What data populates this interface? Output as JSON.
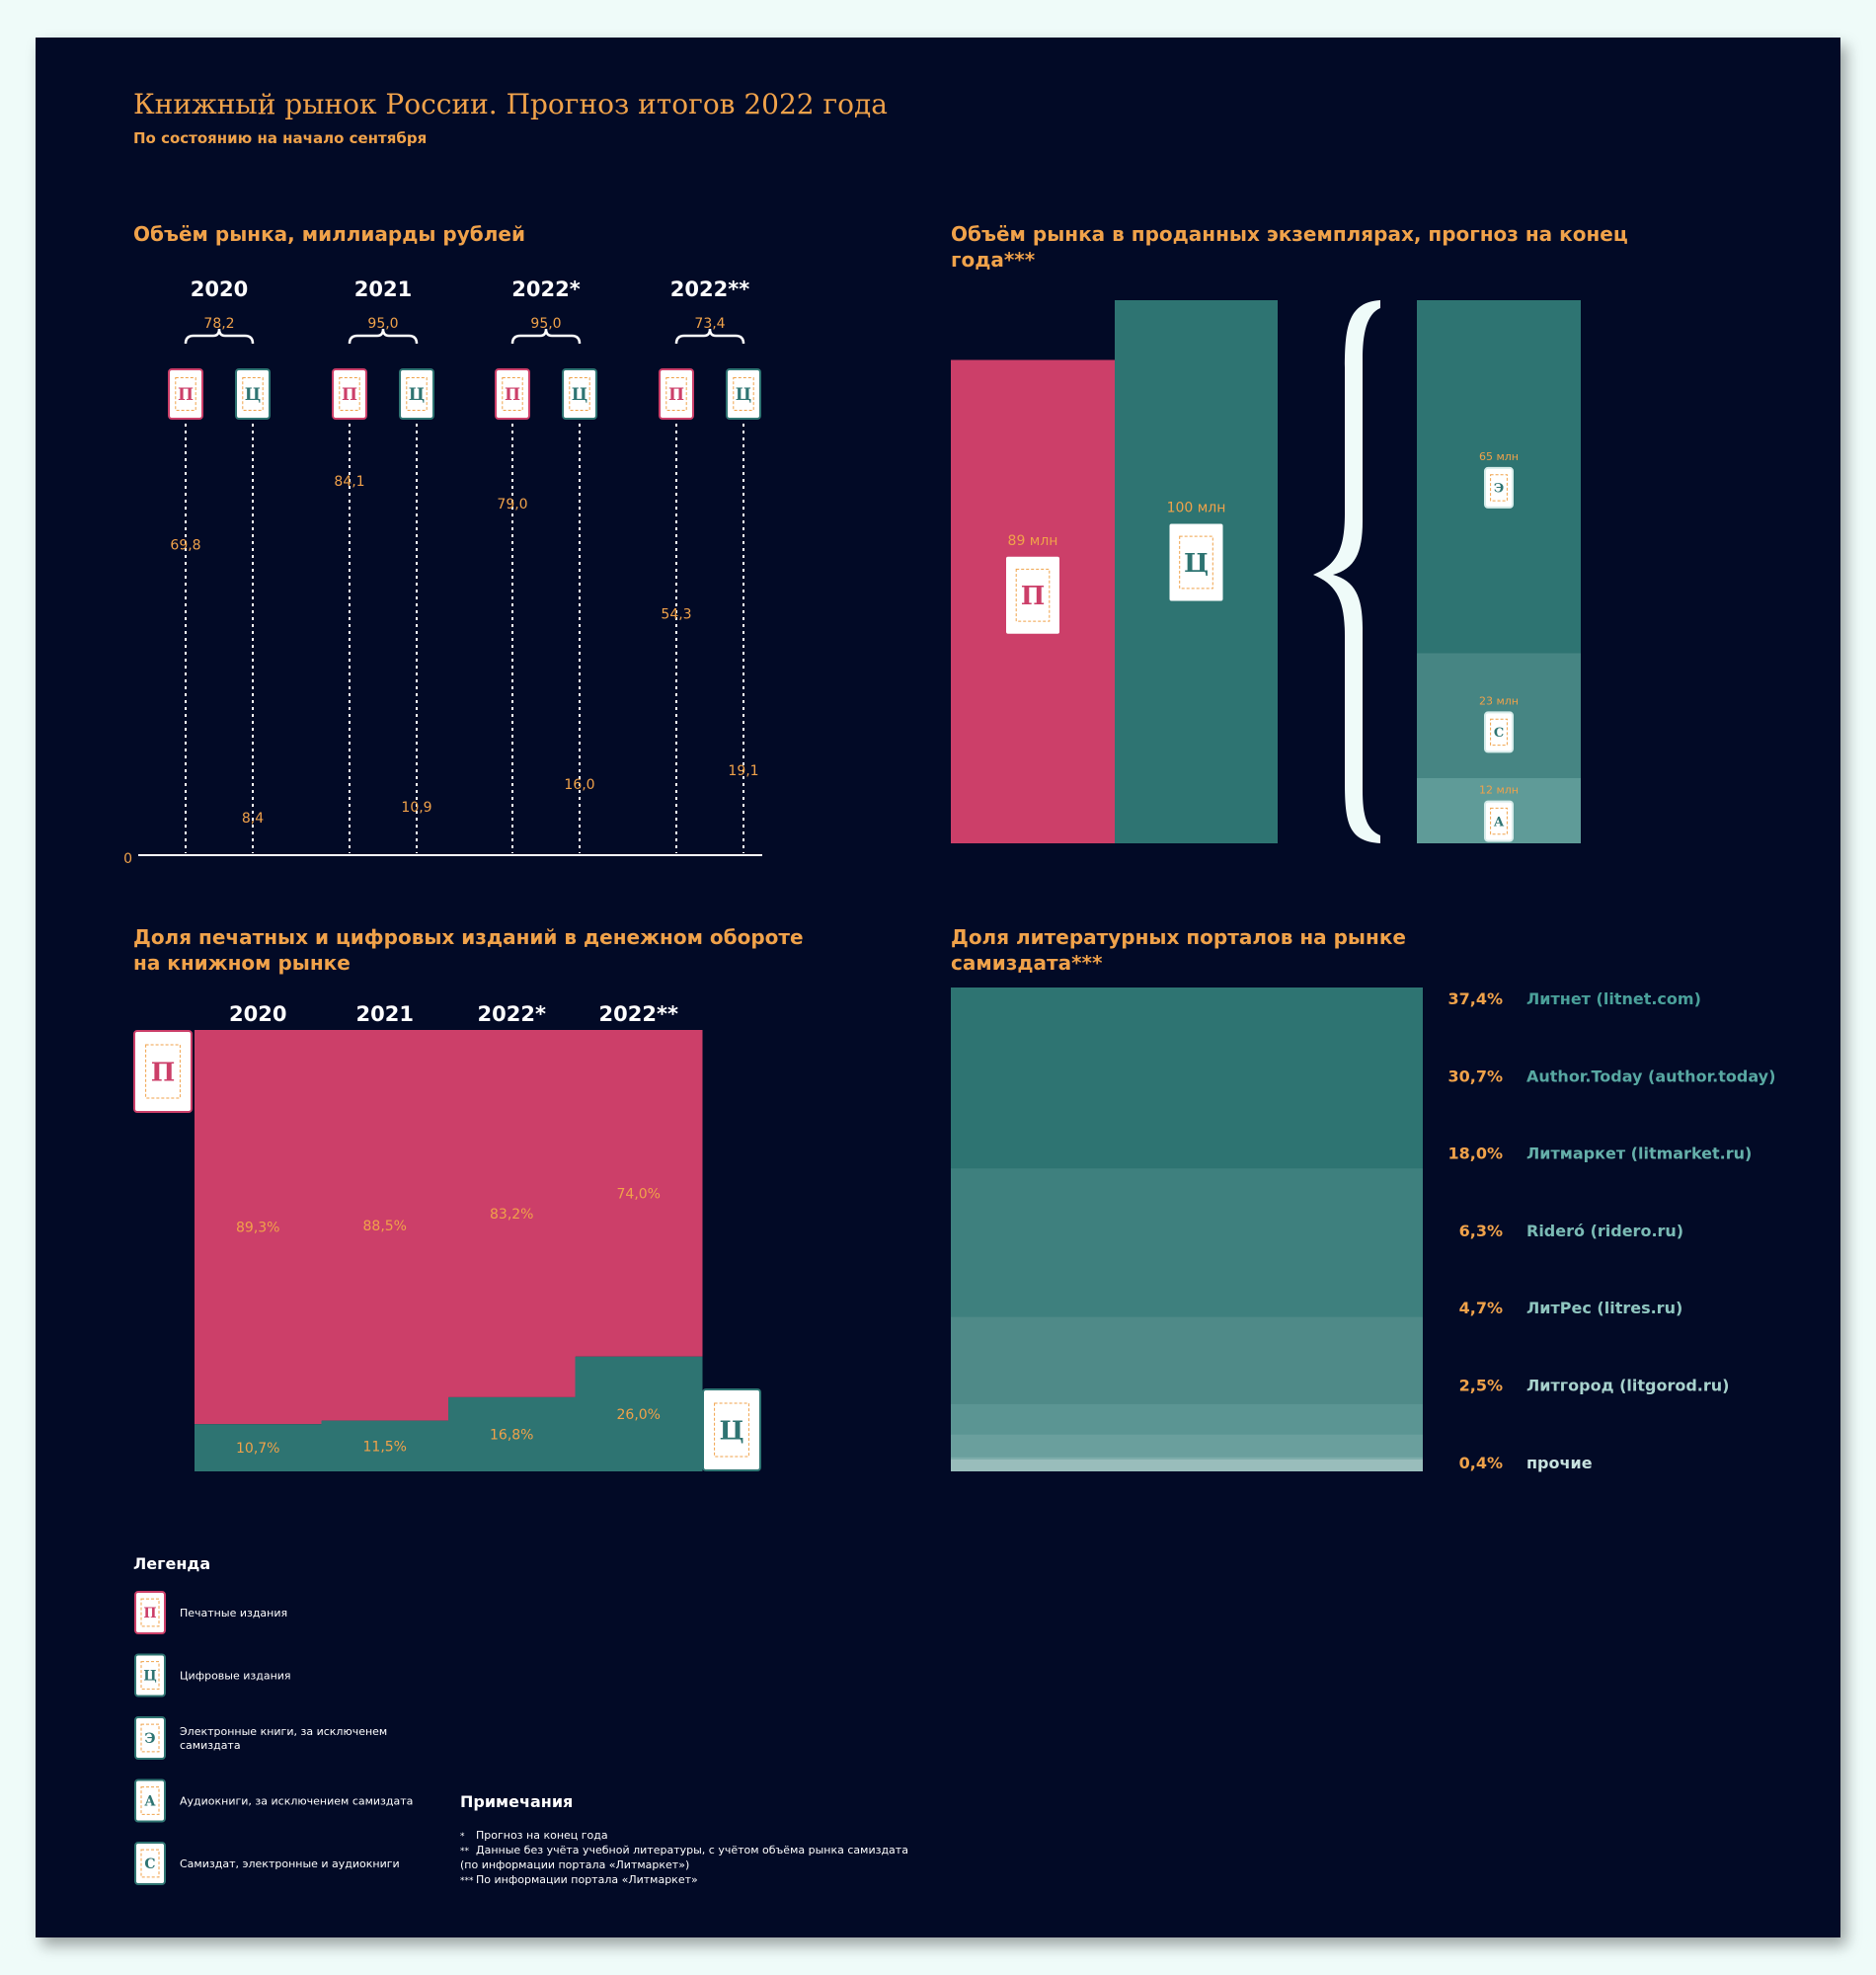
{
  "colors": {
    "background": "#020a26",
    "print": "#cc3f69",
    "digital": "#2e7472",
    "accent": "#f0a24a",
    "brace": "#effbf9",
    "text_white": "#ffffff"
  },
  "header": {
    "title": "Книжный рынок России. Прогноз итогов 2022 года",
    "subtitle": "По состоянию на начало сентября"
  },
  "chart_data": [
    {
      "id": "market_volume_rub",
      "type": "bar",
      "title": "Объём рынка, миллиарды рублей",
      "baseline_label": "0",
      "categories": [
        "2020",
        "2021",
        "2022*",
        "2022**"
      ],
      "series": [
        {
          "name": "П",
          "values": [
            69.8,
            84.1,
            79.0,
            54.3
          ],
          "labels": [
            "69,8",
            "84,1",
            "79,0",
            "54,3"
          ]
        },
        {
          "name": "Ц",
          "values": [
            8.4,
            10.9,
            16.0,
            19.1
          ],
          "labels": [
            "8,4",
            "10,9",
            "16,0",
            "19,1"
          ]
        }
      ],
      "totals": [
        "78,2",
        "95,0",
        "95,0",
        "73,4"
      ],
      "ylim": [
        0,
        95
      ]
    },
    {
      "id": "market_volume_copies",
      "type": "bar",
      "title": "Объём рынка в проданных экземплярах, прогноз на конец года***",
      "bars": [
        {
          "key": "П",
          "value": 89,
          "label": "89 млн"
        },
        {
          "key": "Ц",
          "value": 100,
          "label": "100 млн"
        }
      ],
      "digital_breakdown": [
        {
          "key": "Э",
          "value": 65,
          "label": "65 млн"
        },
        {
          "key": "С",
          "value": 23,
          "label": "23 млн"
        },
        {
          "key": "А",
          "value": 12,
          "label": "12 млн"
        }
      ]
    },
    {
      "id": "money_share",
      "type": "bar",
      "stacked": true,
      "title": "Доля печатных и цифровых изданий в денежном обороте на книжном рынке",
      "categories": [
        "2020",
        "2021",
        "2022*",
        "2022**"
      ],
      "series": [
        {
          "name": "П",
          "values": [
            89.3,
            88.5,
            83.2,
            74.0
          ],
          "labels": [
            "89,3%",
            "88,5%",
            "83,2%",
            "74,0%"
          ]
        },
        {
          "name": "Ц",
          "values": [
            10.7,
            11.5,
            16.8,
            26.0
          ],
          "labels": [
            "10,7%",
            "11,5%",
            "16,8%",
            "26,0%"
          ]
        }
      ],
      "ylim": [
        0,
        100
      ]
    },
    {
      "id": "portals_share",
      "type": "bar",
      "stacked": true,
      "title": "Доля литературных порталов на рынке самиздата***",
      "categories": [
        "Литнет (litnet.com)",
        "Author.Today (author.today)",
        "Литмаркет (litmarket.ru)",
        "Rideró (ridero.ru)",
        "ЛитРес (litres.ru)",
        "Литгород (litgorod.ru)",
        "прочие"
      ],
      "values": [
        37.4,
        30.7,
        18.0,
        6.3,
        4.7,
        2.5,
        0.4
      ],
      "labels": [
        "37,4%",
        "30,7%",
        "18,0%",
        "6,3%",
        "4,7%",
        "2,5%",
        "0,4%"
      ],
      "segment_colors": [
        "#2e7472",
        "#3e807e",
        "#4f8a88",
        "#5b9593",
        "#6a9f9d",
        "#7eacaa",
        "#99bdbb"
      ],
      "label_colors": [
        "#4aa09a",
        "#58a8a2",
        "#65b0aa",
        "#7bbbb5",
        "#90c6c0",
        "#a8d2cd",
        "#c8e2df"
      ]
    }
  ],
  "legend": {
    "title": "Легенда",
    "items": [
      {
        "letter": "П",
        "text": "Печатные издания"
      },
      {
        "letter": "Ц",
        "text": "Цифровые издания"
      },
      {
        "letter": "Э",
        "text": "Электронные книги, за исключенем",
        "text2": "самиздата"
      },
      {
        "letter": "А",
        "text": "Аудиокниги, за исключением самиздата"
      },
      {
        "letter": "С",
        "text": "Самиздат, электронные и аудиокниги"
      }
    ]
  },
  "notes": {
    "title": "Примечания",
    "lines": [
      {
        "mark": "*",
        "text": "Прогноз на конец года"
      },
      {
        "mark": "**",
        "text": "Данные без учёта учебной литературы, с учётом объёма рынка самиздата"
      },
      {
        "mark": "",
        "text": "(по информации портала «Литмаркет»)"
      },
      {
        "mark": "***",
        "text": "По информации портала «Литмаркет»"
      }
    ]
  }
}
